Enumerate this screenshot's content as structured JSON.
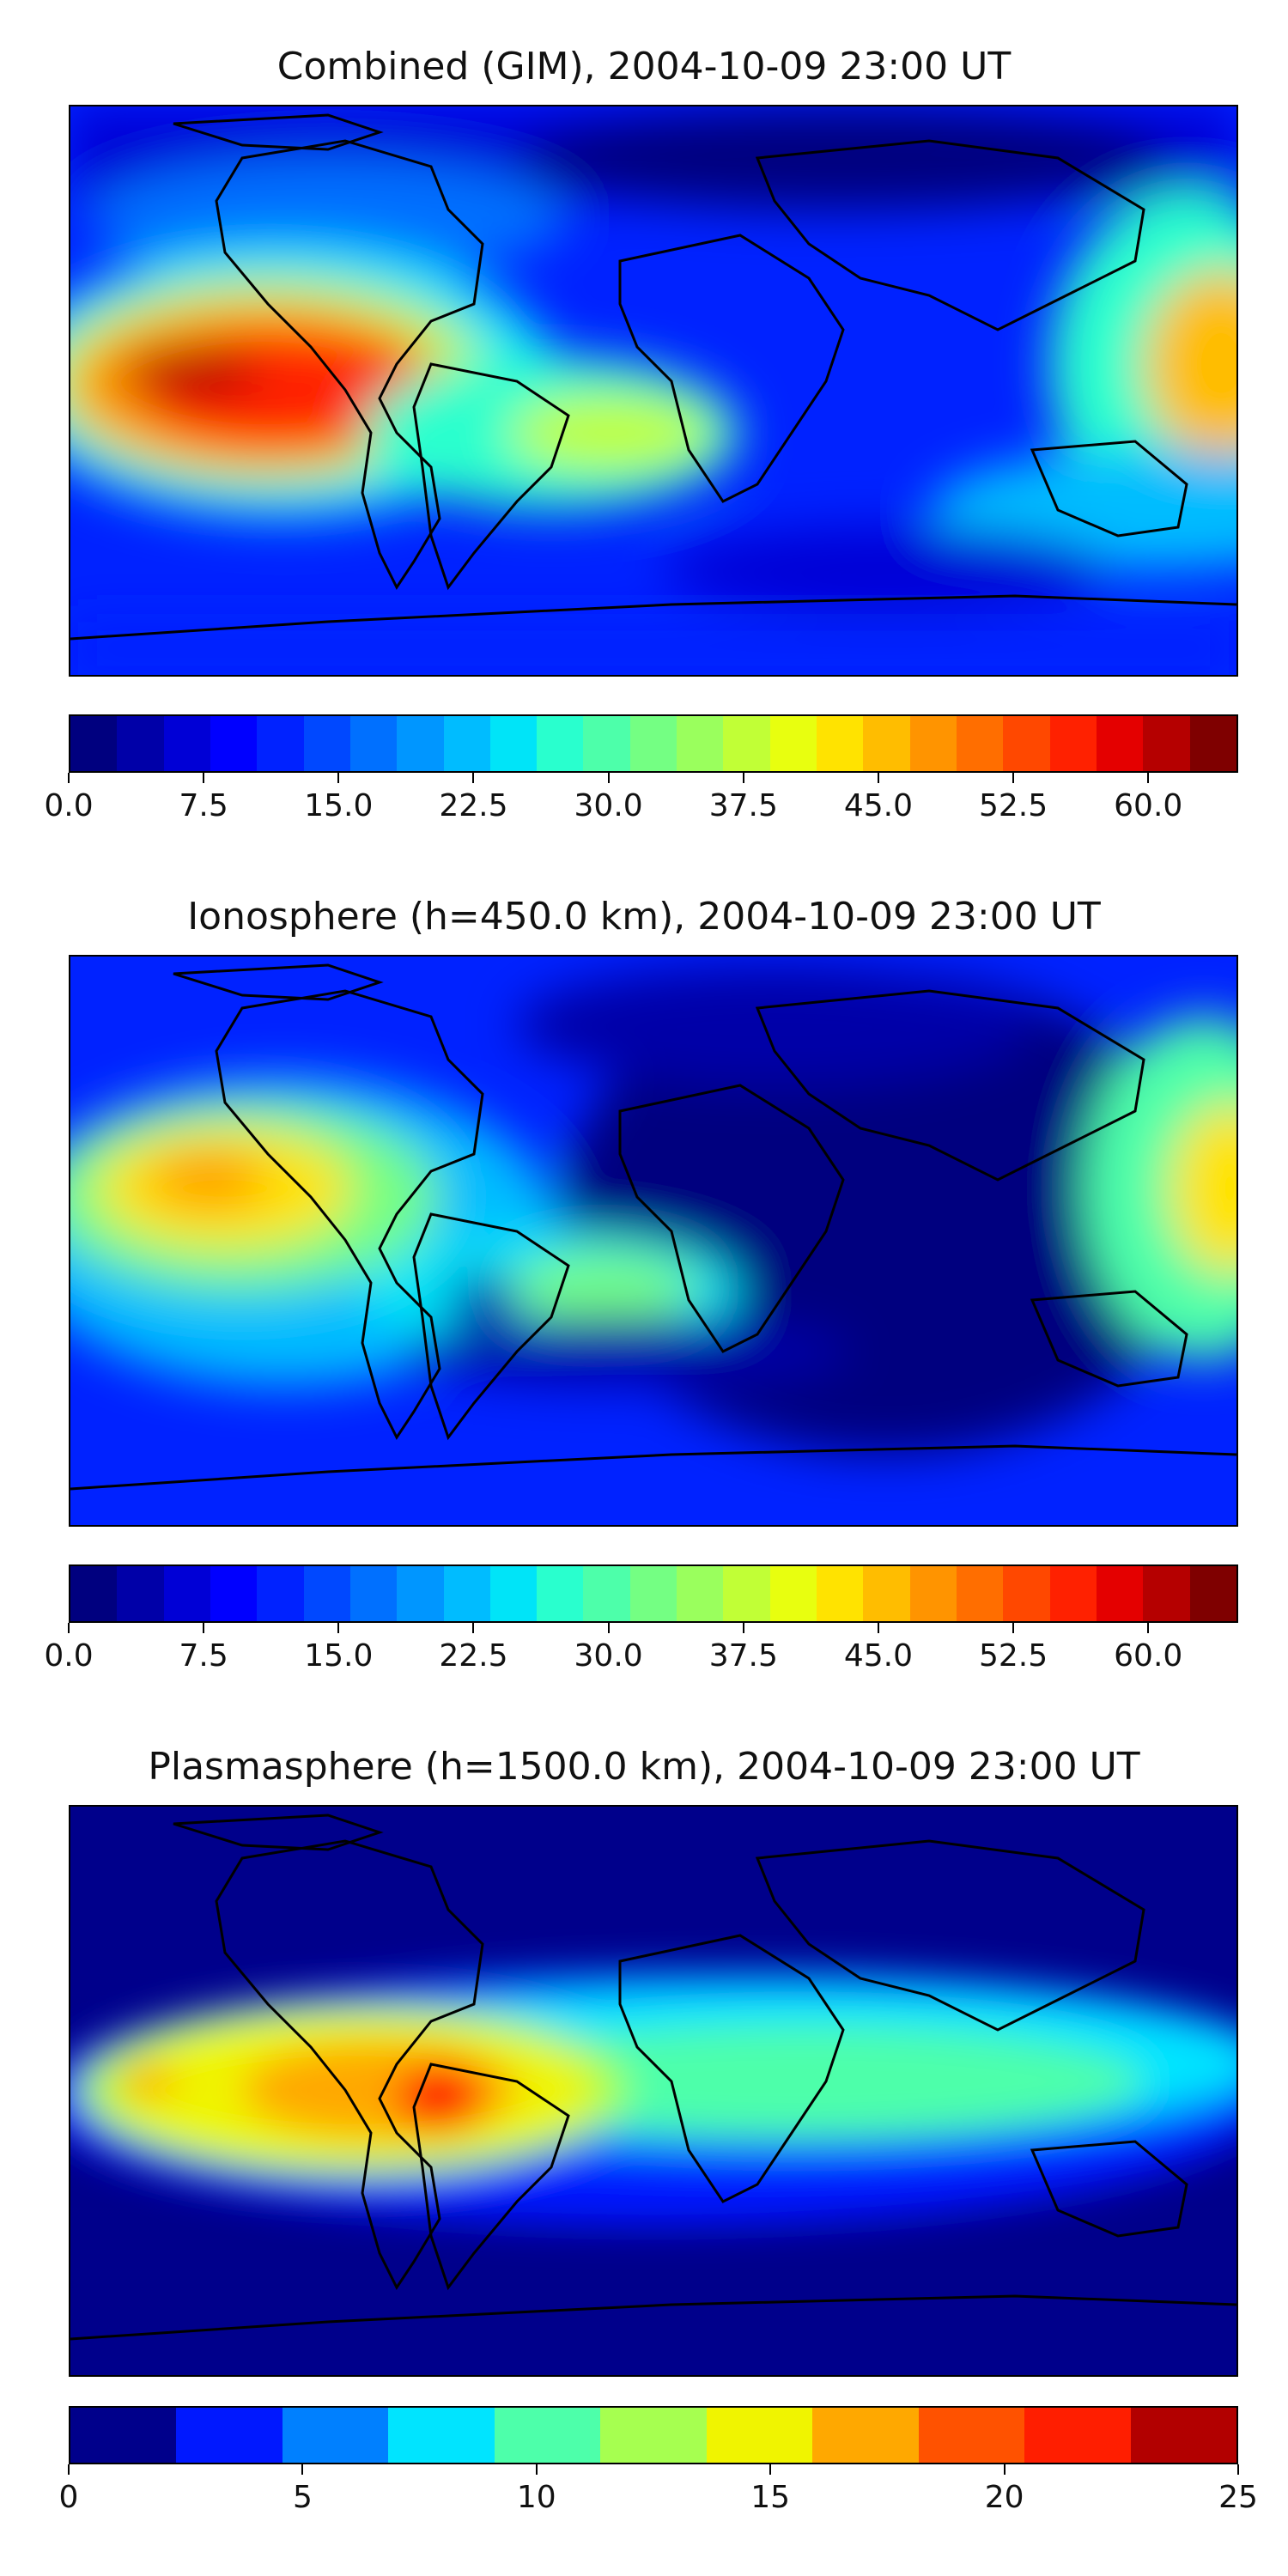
{
  "panels": [
    {
      "title": "Combined (GIM), 2004-10-09 23:00 UT",
      "colorbar": {
        "colors": [
          "#00007f",
          "#0000a8",
          "#0000d6",
          "#0000ff",
          "#0022ff",
          "#0048ff",
          "#0070ff",
          "#0096ff",
          "#00bcff",
          "#00e4f8",
          "#29ffce",
          "#4dffaa",
          "#74ff83",
          "#9aff5d",
          "#c1ff36",
          "#e8ff0f",
          "#ffe300",
          "#ffbd00",
          "#ff9400",
          "#ff6e00",
          "#ff4800",
          "#ff2100",
          "#e40000",
          "#b50000",
          "#7f0000"
        ],
        "min": 0,
        "max": 65,
        "ticks": [
          "0.0",
          "7.5",
          "15.0",
          "22.5",
          "30.0",
          "37.5",
          "45.0",
          "52.5",
          "60.0"
        ]
      }
    },
    {
      "title": "Ionosphere  (h=450.0 km), 2004-10-09 23:00 UT",
      "colorbar": {
        "colors": [
          "#00007f",
          "#0000a8",
          "#0000d6",
          "#0000ff",
          "#0022ff",
          "#0048ff",
          "#0070ff",
          "#0096ff",
          "#00bcff",
          "#00e4f8",
          "#29ffce",
          "#4dffaa",
          "#74ff83",
          "#9aff5d",
          "#c1ff36",
          "#e8ff0f",
          "#ffe300",
          "#ffbd00",
          "#ff9400",
          "#ff6e00",
          "#ff4800",
          "#ff2100",
          "#e40000",
          "#b50000",
          "#7f0000"
        ],
        "min": 0,
        "max": 65,
        "ticks": [
          "0.0",
          "7.5",
          "15.0",
          "22.5",
          "30.0",
          "37.5",
          "45.0",
          "52.5",
          "60.0"
        ]
      }
    },
    {
      "title": "Plasmasphere (h=1500.0 km), 2004-10-09 23:00 UT",
      "colorbar": {
        "colors": [
          "#00008b",
          "#0018ff",
          "#0080ff",
          "#00e4ff",
          "#4dffaa",
          "#a6ff50",
          "#f0f400",
          "#ffa800",
          "#ff5200",
          "#ff1e00",
          "#b20000"
        ],
        "min": 0,
        "max": 25,
        "ticks": [
          "0",
          "5",
          "10",
          "15",
          "20",
          "25"
        ]
      }
    }
  ]
}
